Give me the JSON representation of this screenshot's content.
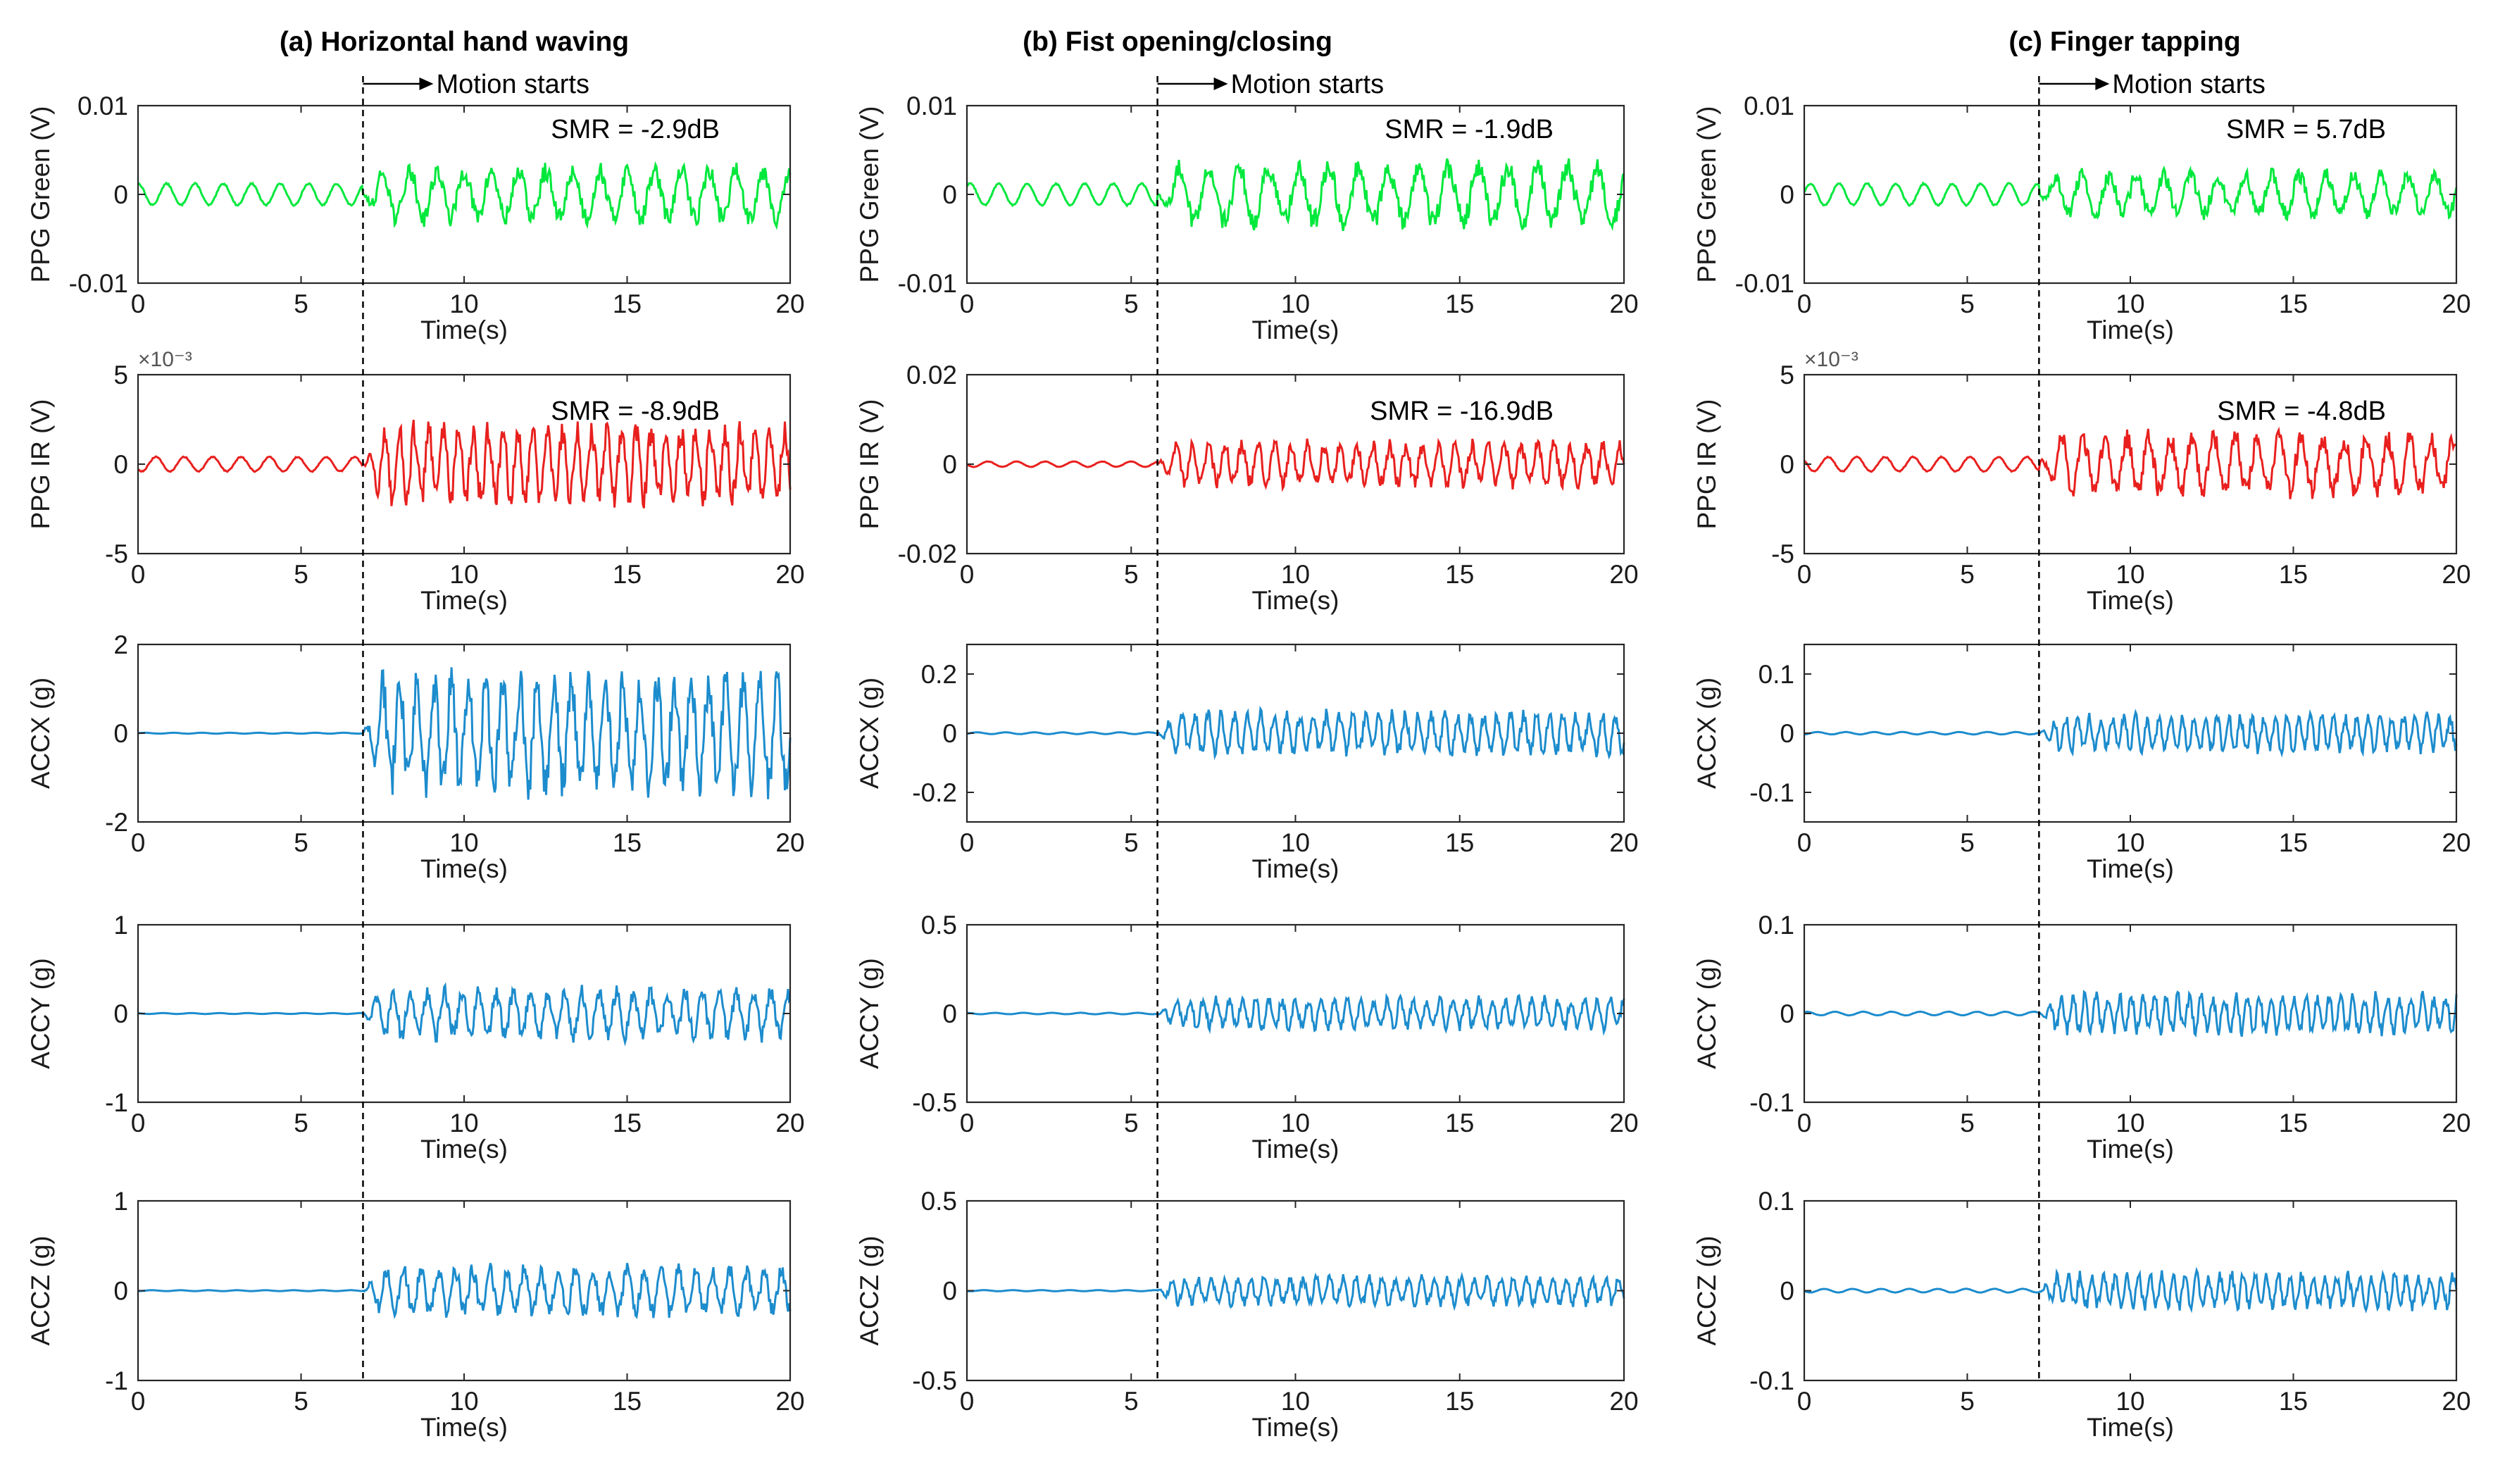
{
  "figure": {
    "columns": [
      {
        "title": "(a) Horizontal hand waving",
        "motion_label": "Motion starts",
        "motion_start": 6.9
      },
      {
        "title": "(b) Fist opening/closing",
        "motion_label": "Motion starts",
        "motion_start": 5.8
      },
      {
        "title": "(c) Finger tapping",
        "motion_label": "Motion starts",
        "motion_start": 7.2
      }
    ],
    "x_tick_labels": [
      "0",
      "5",
      "10",
      "15",
      "20"
    ],
    "exponent_label": "×10⁻³"
  },
  "chart_data": [
    {
      "type": "line",
      "column": 0,
      "row": 0,
      "ylabel": "PPG Green (V)",
      "xlabel": "Time(s)",
      "xlim": [
        0,
        20
      ],
      "ylim": [
        -0.01,
        0.01
      ],
      "yticks": [
        -0.01,
        0,
        0.01
      ],
      "ytick_labels": [
        "-0.01",
        "0",
        "0.01"
      ],
      "color": "#00e83c",
      "annotation": "SMR = -2.9dB",
      "series": [
        {
          "name": "PPG Green",
          "pre_amplitude": 0.0012,
          "post_amplitude": 0.0035,
          "motion_start": 6.9,
          "dominant_freq_hz": 1.2
        }
      ]
    },
    {
      "type": "line",
      "column": 0,
      "row": 1,
      "ylabel": "PPG IR (V)",
      "xlabel": "Time(s)",
      "xlim": [
        0,
        20
      ],
      "ylim": [
        -5,
        5
      ],
      "yticks": [
        -5,
        0,
        5
      ],
      "ytick_labels": [
        "-5",
        "0",
        "5"
      ],
      "y_scale_exponent": "×10⁻³",
      "color": "#e8201e",
      "annotation": "SMR = -8.9dB",
      "series": [
        {
          "name": "PPG IR",
          "pre_amplitude": 0.4,
          "post_amplitude": 2.4,
          "motion_start": 6.9,
          "dominant_freq_hz": 2.2
        }
      ]
    },
    {
      "type": "line",
      "column": 0,
      "row": 2,
      "ylabel": "ACCX (g)",
      "xlabel": "Time(s)",
      "xlim": [
        0,
        20
      ],
      "ylim": [
        -2,
        2
      ],
      "yticks": [
        -2,
        0,
        2
      ],
      "ytick_labels": [
        "-2",
        "0",
        "2"
      ],
      "color": "#1c8ccd",
      "annotation": "",
      "series": [
        {
          "name": "ACCX",
          "pre_amplitude": 0.01,
          "post_amplitude": 1.45,
          "motion_start": 6.9,
          "dominant_freq_hz": 1.9
        }
      ]
    },
    {
      "type": "line",
      "column": 0,
      "row": 3,
      "ylabel": "ACCY (g)",
      "xlabel": "Time(s)",
      "xlim": [
        0,
        20
      ],
      "ylim": [
        -1,
        1
      ],
      "yticks": [
        -1,
        0,
        1
      ],
      "ytick_labels": [
        "-1",
        "0",
        "1"
      ],
      "color": "#1c8ccd",
      "annotation": "",
      "series": [
        {
          "name": "ACCY",
          "pre_amplitude": 0.005,
          "post_amplitude": 0.32,
          "motion_start": 6.9,
          "dominant_freq_hz": 1.9
        }
      ]
    },
    {
      "type": "line",
      "column": 0,
      "row": 4,
      "ylabel": "ACCZ (g)",
      "xlabel": "Time(s)",
      "xlim": [
        0,
        20
      ],
      "ylim": [
        -1,
        1
      ],
      "yticks": [
        -1,
        0,
        1
      ],
      "ytick_labels": [
        "-1",
        "0",
        "1"
      ],
      "color": "#1c8ccd",
      "annotation": "",
      "series": [
        {
          "name": "ACCZ",
          "pre_amplitude": 0.005,
          "post_amplitude": 0.3,
          "motion_start": 6.9,
          "dominant_freq_hz": 1.9
        }
      ]
    },
    {
      "type": "line",
      "column": 1,
      "row": 0,
      "ylabel": "PPG Green (V)",
      "xlabel": "Time(s)",
      "xlim": [
        0,
        20
      ],
      "ylim": [
        -0.01,
        0.01
      ],
      "yticks": [
        -0.01,
        0,
        0.01
      ],
      "ytick_labels": [
        "-0.01",
        "0",
        "0.01"
      ],
      "color": "#00e83c",
      "annotation": "SMR = -1.9dB",
      "series": [
        {
          "name": "PPG Green",
          "pre_amplitude": 0.0012,
          "post_amplitude": 0.004,
          "motion_start": 5.8,
          "dominant_freq_hz": 1.1
        }
      ]
    },
    {
      "type": "line",
      "column": 1,
      "row": 1,
      "ylabel": "PPG IR (V)",
      "xlabel": "Time(s)",
      "xlim": [
        0,
        20
      ],
      "ylim": [
        -0.02,
        0.02
      ],
      "yticks": [
        -0.02,
        0,
        0.02
      ],
      "ytick_labels": [
        "-0.02",
        "0",
        "0.02"
      ],
      "color": "#e8201e",
      "annotation": "SMR = -16.9dB",
      "series": [
        {
          "name": "PPG IR",
          "pre_amplitude": 0.0006,
          "post_amplitude": 0.0055,
          "motion_start": 5.8,
          "dominant_freq_hz": 2.0
        }
      ]
    },
    {
      "type": "line",
      "column": 1,
      "row": 2,
      "ylabel": "ACCX (g)",
      "xlabel": "Time(s)",
      "xlim": [
        0,
        20
      ],
      "ylim": [
        -0.3,
        0.3
      ],
      "yticks": [
        -0.2,
        0,
        0.2
      ],
      "ytick_labels": [
        "-0.2",
        "0",
        "0.2"
      ],
      "color": "#1c8ccd",
      "annotation": "",
      "series": [
        {
          "name": "ACCX",
          "pre_amplitude": 0.003,
          "post_amplitude": 0.08,
          "motion_start": 5.8,
          "dominant_freq_hz": 2.5
        }
      ]
    },
    {
      "type": "line",
      "column": 1,
      "row": 3,
      "ylabel": "ACCY (g)",
      "xlabel": "Time(s)",
      "xlim": [
        0,
        20
      ],
      "ylim": [
        -0.5,
        0.5
      ],
      "yticks": [
        -0.5,
        0,
        0.5
      ],
      "ytick_labels": [
        "-0.5",
        "0",
        "0.5"
      ],
      "color": "#1c8ccd",
      "annotation": "",
      "series": [
        {
          "name": "ACCY",
          "pre_amplitude": 0.004,
          "post_amplitude": 0.1,
          "motion_start": 5.8,
          "dominant_freq_hz": 2.5
        }
      ]
    },
    {
      "type": "line",
      "column": 1,
      "row": 4,
      "ylabel": "ACCZ (g)",
      "xlabel": "Time(s)",
      "xlim": [
        0,
        20
      ],
      "ylim": [
        -0.5,
        0.5
      ],
      "yticks": [
        -0.5,
        0,
        0.5
      ],
      "ytick_labels": [
        "-0.5",
        "0",
        "0.5"
      ],
      "color": "#1c8ccd",
      "annotation": "",
      "series": [
        {
          "name": "ACCZ",
          "pre_amplitude": 0.003,
          "post_amplitude": 0.09,
          "motion_start": 5.8,
          "dominant_freq_hz": 2.5
        }
      ]
    },
    {
      "type": "line",
      "column": 2,
      "row": 0,
      "ylabel": "PPG Green (V)",
      "xlabel": "Time(s)",
      "xlim": [
        0,
        20
      ],
      "ylim": [
        -0.01,
        0.01
      ],
      "yticks": [
        -0.01,
        0,
        0.01
      ],
      "ytick_labels": [
        "-0.01",
        "0",
        "0.01"
      ],
      "color": "#00e83c",
      "annotation": "SMR = 5.7dB",
      "series": [
        {
          "name": "PPG Green",
          "pre_amplitude": 0.0012,
          "post_amplitude": 0.0028,
          "motion_start": 7.2,
          "dominant_freq_hz": 1.2
        }
      ]
    },
    {
      "type": "line",
      "column": 2,
      "row": 1,
      "ylabel": "PPG IR (V)",
      "xlabel": "Time(s)",
      "xlim": [
        0,
        20
      ],
      "ylim": [
        -5,
        5
      ],
      "yticks": [
        -5,
        0,
        5
      ],
      "ytick_labels": [
        "-5",
        "0",
        "5"
      ],
      "y_scale_exponent": "×10⁻³",
      "color": "#e8201e",
      "annotation": "SMR = -4.8dB",
      "series": [
        {
          "name": "PPG IR",
          "pre_amplitude": 0.4,
          "post_amplitude": 1.9,
          "motion_start": 7.2,
          "dominant_freq_hz": 1.5
        }
      ]
    },
    {
      "type": "line",
      "column": 2,
      "row": 2,
      "ylabel": "ACCX (g)",
      "xlabel": "Time(s)",
      "xlim": [
        0,
        20
      ],
      "ylim": [
        -0.15,
        0.15
      ],
      "yticks": [
        -0.1,
        0,
        0.1
      ],
      "ytick_labels": [
        "-0.1",
        "0",
        "0.1"
      ],
      "color": "#1c8ccd",
      "annotation": "",
      "series": [
        {
          "name": "ACCX",
          "pre_amplitude": 0.002,
          "post_amplitude": 0.035,
          "motion_start": 7.2,
          "dominant_freq_hz": 2.8
        }
      ]
    },
    {
      "type": "line",
      "column": 2,
      "row": 3,
      "ylabel": "ACCY (g)",
      "xlabel": "Time(s)",
      "xlim": [
        0,
        20
      ],
      "ylim": [
        -0.1,
        0.1
      ],
      "yticks": [
        -0.1,
        0,
        0.1
      ],
      "ytick_labels": [
        "-0.1",
        "0",
        "0.1"
      ],
      "color": "#1c8ccd",
      "annotation": "",
      "series": [
        {
          "name": "ACCY",
          "pre_amplitude": 0.002,
          "post_amplitude": 0.025,
          "motion_start": 7.2,
          "dominant_freq_hz": 2.8
        }
      ]
    },
    {
      "type": "line",
      "column": 2,
      "row": 4,
      "ylabel": "ACCZ (g)",
      "xlabel": "Time(s)",
      "xlim": [
        0,
        20
      ],
      "ylim": [
        -0.1,
        0.1
      ],
      "yticks": [
        -0.1,
        0,
        0.1
      ],
      "ytick_labels": [
        "-0.1",
        "0",
        "0.1"
      ],
      "color": "#1c8ccd",
      "annotation": "",
      "series": [
        {
          "name": "ACCZ",
          "pre_amplitude": 0.002,
          "post_amplitude": 0.022,
          "motion_start": 7.2,
          "dominant_freq_hz": 2.8
        }
      ]
    }
  ]
}
